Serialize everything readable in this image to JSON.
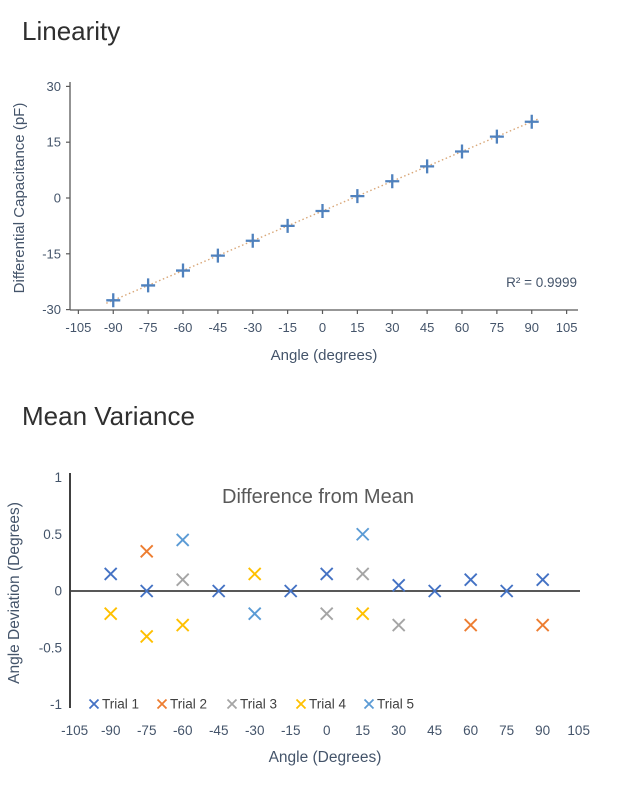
{
  "page": {
    "background": "#ffffff"
  },
  "chart_data": [
    {
      "type": "scatter",
      "section_title": "Linearity",
      "xlabel": "Angle (degrees)",
      "ylabel": "Differential Capacitance (pF)",
      "xlim": [
        -105,
        105
      ],
      "ylim": [
        -30,
        30
      ],
      "xticks": [
        -105,
        -90,
        -75,
        -60,
        -45,
        -30,
        -15,
        0,
        15,
        30,
        45,
        60,
        75,
        90,
        105
      ],
      "yticks": [
        30,
        15,
        0,
        -15,
        -30
      ],
      "grid": false,
      "legend_position": "none",
      "marker": "plus",
      "marker_color": "#4f81bd",
      "x": [
        -90,
        -75,
        -60,
        -45,
        -30,
        -15,
        0,
        15,
        30,
        45,
        60,
        75,
        90
      ],
      "y": [
        -27.5,
        -23.5,
        -19.5,
        -15.5,
        -11.5,
        -7.5,
        -3.5,
        0.5,
        4.5,
        8.5,
        12.5,
        16.5,
        20.5
      ],
      "trendline": {
        "style": "dotted",
        "color": "#d9a778",
        "slope": 0.2667,
        "intercept": -3.5,
        "x_start": -93,
        "x_end": 93
      },
      "annotation": "R² = 0.9999",
      "axis_color": "#595959",
      "text_color": "#44546a"
    },
    {
      "type": "scatter",
      "section_title": "Mean Variance",
      "title": "Difference from Mean",
      "xlabel": "Angle (Degrees)",
      "ylabel": "Angle Deviation (Degrees)",
      "xlim": [
        -105,
        105
      ],
      "ylim": [
        -1,
        1
      ],
      "xticks": [
        -105,
        -90,
        -75,
        -60,
        -45,
        -30,
        -15,
        0,
        15,
        30,
        45,
        60,
        75,
        90,
        105
      ],
      "yticks": [
        1,
        0.5,
        0,
        -0.5,
        -1
      ],
      "grid": false,
      "legend_position": "bottom",
      "marker": "x",
      "series": [
        {
          "name": "Trial 1",
          "color": "#4472c4",
          "points": [
            [
              -90,
              0.15
            ],
            [
              -75,
              0
            ],
            [
              -45,
              0
            ],
            [
              -15,
              0
            ],
            [
              0,
              0.15
            ],
            [
              30,
              0.05
            ],
            [
              45,
              0
            ],
            [
              60,
              0.1
            ],
            [
              75,
              0
            ],
            [
              90,
              0.1
            ]
          ]
        },
        {
          "name": "Trial 2",
          "color": "#ed7d31",
          "points": [
            [
              -75,
              0.35
            ],
            [
              60,
              -0.3
            ],
            [
              90,
              -0.3
            ]
          ]
        },
        {
          "name": "Trial 3",
          "color": "#a5a5a5",
          "points": [
            [
              -60,
              0.1
            ],
            [
              0,
              -0.2
            ],
            [
              15,
              0.15
            ],
            [
              30,
              -0.3
            ]
          ]
        },
        {
          "name": "Trial 4",
          "color": "#ffc000",
          "points": [
            [
              -90,
              -0.2
            ],
            [
              -75,
              -0.4
            ],
            [
              -60,
              -0.3
            ],
            [
              -30,
              0.15
            ],
            [
              15,
              -0.2
            ]
          ]
        },
        {
          "name": "Trial 5",
          "color": "#5b9bd5",
          "points": [
            [
              -60,
              0.45
            ],
            [
              -30,
              -0.2
            ],
            [
              15,
              0.5
            ]
          ]
        }
      ],
      "axis_color": "#404040",
      "text_color": "#44546a",
      "title_color": "#595959"
    }
  ]
}
